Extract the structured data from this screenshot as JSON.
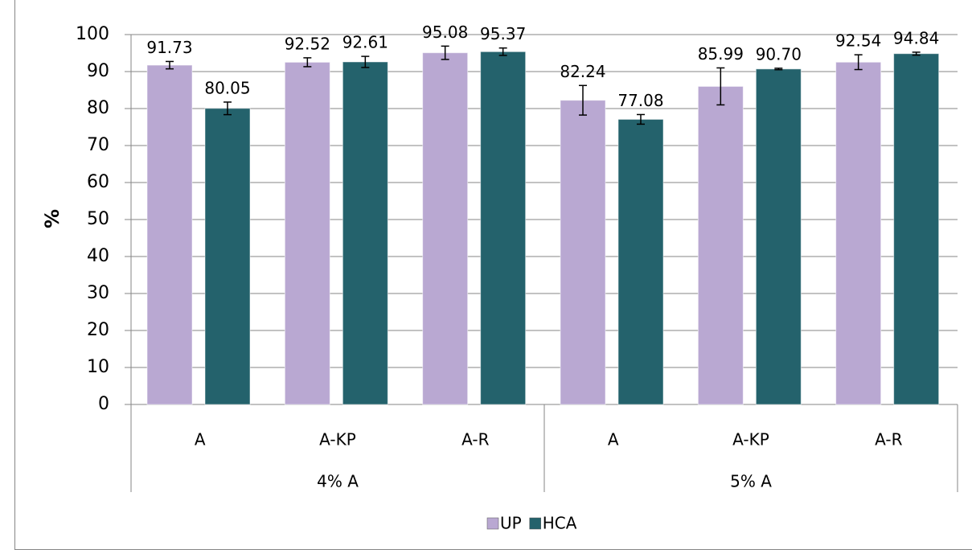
{
  "chart_data": {
    "type": "bar",
    "y_label": "%",
    "categories": [
      "A",
      "A-KP",
      "A-R",
      "A",
      "A-KP",
      "A-R"
    ],
    "groups": [
      "4% A",
      "5% A"
    ],
    "series": [
      {
        "name": "UP",
        "color": "#b9a8d2",
        "values": [
          91.73,
          92.52,
          95.08,
          82.24,
          85.99,
          92.54
        ],
        "value_labels": [
          "91.73",
          "92.52",
          "95.08",
          "82.24",
          "85.99",
          "92.54"
        ],
        "errors": [
          1.0,
          1.2,
          1.8,
          4.0,
          5.0,
          2.0
        ]
      },
      {
        "name": "HCA",
        "color": "#24626c",
        "values": [
          80.05,
          92.61,
          95.37,
          77.08,
          90.7,
          94.84
        ],
        "value_labels": [
          "80.05",
          "92.61",
          "95.37",
          "77.08",
          "90.70",
          "94.84"
        ],
        "errors": [
          1.7,
          1.5,
          1.0,
          1.3,
          0.2,
          0.4
        ]
      }
    ],
    "ylim": [
      0,
      100
    ],
    "yticks": [
      0,
      10,
      20,
      30,
      40,
      50,
      60,
      70,
      80,
      90,
      100
    ],
    "grid": true,
    "legend": "bottom"
  }
}
